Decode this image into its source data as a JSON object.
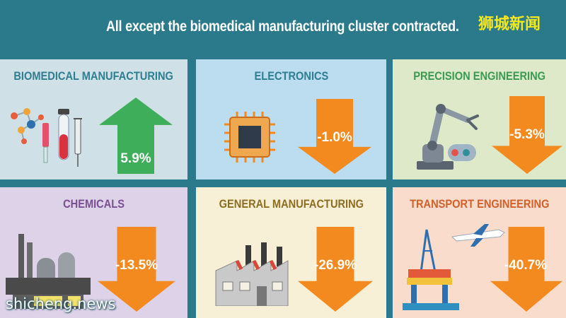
{
  "header": {
    "title": "All except the biomedical manufacturing cluster contracted.",
    "brand": "狮城新闻"
  },
  "watermark": "shicheng.news",
  "colors": {
    "background": "#2b7a8c",
    "growth_arrow": "#3fae5a",
    "decline_arrow": "#f28a20",
    "brand_text": "#f7e81d"
  },
  "chart_data": {
    "type": "bar",
    "title": "All except the biomedical manufacturing cluster contracted.",
    "unit": "%",
    "categories": [
      "BIOMEDICAL MANUFACTURING",
      "ELECTRONICS",
      "PRECISION ENGINEERING",
      "CHEMICALS",
      "GENERAL MANUFACTURING",
      "TRANSPORT ENGINEERING"
    ],
    "values": [
      5.9,
      -1.0,
      -5.3,
      -13.5,
      -26.9,
      -40.7
    ],
    "labels": [
      "5.9%",
      "-1.0%",
      "-5.3%",
      "-13.5%",
      "-26.9%",
      "-40.7%"
    ],
    "panels": [
      {
        "name": "BIOMEDICAL MANUFACTURING",
        "value": 5.9,
        "label": "5.9%",
        "direction": "up",
        "bg": "#cfe1e6",
        "title_color": "#2e7e91",
        "icon": "lab-equipment-icon"
      },
      {
        "name": "ELECTRONICS",
        "value": -1.0,
        "label": "-1.0%",
        "direction": "down",
        "bg": "#bcdcef",
        "title_color": "#2e7e91",
        "icon": "microchip-icon"
      },
      {
        "name": "PRECISION ENGINEERING",
        "value": -5.3,
        "label": "-5.3%",
        "direction": "down",
        "bg": "#dde9c9",
        "title_color": "#3a9a52",
        "icon": "robotic-arm-icon"
      },
      {
        "name": "CHEMICALS",
        "value": -13.5,
        "label": "-13.5%",
        "direction": "down",
        "bg": "#ddd2e8",
        "title_color": "#7a4f91",
        "icon": "chemical-plant-icon"
      },
      {
        "name": "GENERAL MANUFACTURING",
        "value": -26.9,
        "label": "-26.9%",
        "direction": "down",
        "bg": "#f7f0d6",
        "title_color": "#8d6d1f",
        "icon": "factory-icon"
      },
      {
        "name": "TRANSPORT ENGINEERING",
        "value": -40.7,
        "label": "-40.7%",
        "direction": "down",
        "bg": "#f9dccb",
        "title_color": "#d1602a",
        "icon": "oil-rig-airplane-icon"
      }
    ]
  }
}
